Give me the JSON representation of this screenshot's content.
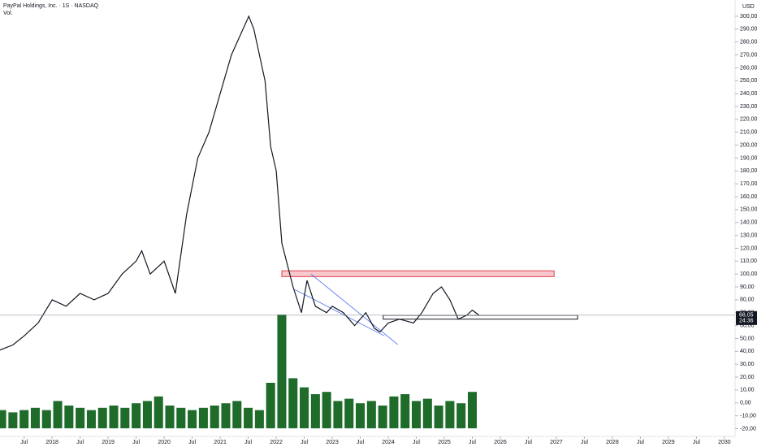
{
  "chart_data": {
    "type": "line",
    "title": "PayPal Holdings, Inc. · 1S · NASDAQ",
    "subtitle": "Vol.",
    "currency": "USD",
    "countdown": "24:36",
    "last_price": {
      "value": 68.05,
      "label": "68,05"
    },
    "xlim": [
      2017.07,
      2030.19
    ],
    "ylim": [
      -26,
      312.6
    ],
    "xticks": [
      {
        "value": 2017.5,
        "label": "Jul"
      },
      {
        "value": 2018,
        "label": "2018"
      },
      {
        "value": 2018.5,
        "label": "Jul"
      },
      {
        "value": 2019,
        "label": "2019"
      },
      {
        "value": 2019.5,
        "label": "Jul"
      },
      {
        "value": 2020,
        "label": "2020"
      },
      {
        "value": 2020.5,
        "label": "Jul"
      },
      {
        "value": 2021,
        "label": "2021"
      },
      {
        "value": 2021.5,
        "label": "Jul"
      },
      {
        "value": 2022,
        "label": "2022"
      },
      {
        "value": 2022.5,
        "label": "Jul"
      },
      {
        "value": 2023,
        "label": "2023"
      },
      {
        "value": 2023.5,
        "label": "Jul"
      },
      {
        "value": 2024,
        "label": "2024"
      },
      {
        "value": 2024.5,
        "label": "Jul"
      },
      {
        "value": 2025,
        "label": "2025"
      },
      {
        "value": 2025.5,
        "label": "Jul"
      },
      {
        "value": 2026,
        "label": "2026"
      },
      {
        "value": 2026.5,
        "label": "Jul"
      },
      {
        "value": 2027,
        "label": "2027"
      },
      {
        "value": 2027.5,
        "label": "Jul"
      },
      {
        "value": 2028,
        "label": "2028"
      },
      {
        "value": 2028.5,
        "label": "Jul"
      },
      {
        "value": 2029,
        "label": "2029"
      },
      {
        "value": 2029.5,
        "label": "Jul"
      },
      {
        "value": 2030,
        "label": "2030"
      }
    ],
    "yticks": [
      {
        "value": -20,
        "label": "-20,00"
      },
      {
        "value": -10,
        "label": "-10,00"
      },
      {
        "value": 0,
        "label": "0,00"
      },
      {
        "value": 10,
        "label": "10,00"
      },
      {
        "value": 20,
        "label": "20,00"
      },
      {
        "value": 30,
        "label": "30,00"
      },
      {
        "value": 40,
        "label": "40,00"
      },
      {
        "value": 50,
        "label": "50,00"
      },
      {
        "value": 60,
        "label": "60,00"
      },
      {
        "value": 70,
        "label": "70,00"
      },
      {
        "value": 80,
        "label": "80,00"
      },
      {
        "value": 90,
        "label": "90,00"
      },
      {
        "value": 100,
        "label": "100,00"
      },
      {
        "value": 110,
        "label": "110,00"
      },
      {
        "value": 120,
        "label": "120,00"
      },
      {
        "value": 130,
        "label": "130,00"
      },
      {
        "value": 140,
        "label": "140,00"
      },
      {
        "value": 150,
        "label": "150,00"
      },
      {
        "value": 160,
        "label": "160,00"
      },
      {
        "value": 170,
        "label": "170,00"
      },
      {
        "value": 180,
        "label": "180,00"
      },
      {
        "value": 190,
        "label": "190,00"
      },
      {
        "value": 200,
        "label": "200,00"
      },
      {
        "value": 210,
        "label": "210,00"
      },
      {
        "value": 220,
        "label": "220,00"
      },
      {
        "value": 230,
        "label": "230,00"
      },
      {
        "value": 240,
        "label": "240,00"
      },
      {
        "value": 250,
        "label": "250,00"
      },
      {
        "value": 260,
        "label": "260,00"
      },
      {
        "value": 270,
        "label": "270,00"
      },
      {
        "value": 280,
        "label": "280,00"
      },
      {
        "value": 290,
        "label": "290,00"
      },
      {
        "value": 300,
        "label": "300,00"
      }
    ],
    "grid": false,
    "series": [
      {
        "name": "PayPal Holdings, Inc.",
        "color": "#131722",
        "x": [
          2017.07,
          2017.3,
          2017.5,
          2017.75,
          2018.0,
          2018.25,
          2018.5,
          2018.75,
          2019.0,
          2019.25,
          2019.5,
          2019.6,
          2019.75,
          2020.0,
          2020.2,
          2020.4,
          2020.6,
          2020.8,
          2021.0,
          2021.2,
          2021.51,
          2021.6,
          2021.8,
          2021.9,
          2022.0,
          2022.1,
          2022.3,
          2022.45,
          2022.55,
          2022.7,
          2022.9,
          2023.0,
          2023.2,
          2023.4,
          2023.6,
          2023.75,
          2023.85,
          2024.0,
          2024.2,
          2024.45,
          2024.6,
          2024.8,
          2024.95,
          2025.1,
          2025.25,
          2025.4,
          2025.5,
          2025.62
        ],
        "values": [
          41,
          45,
          52,
          62,
          80,
          75,
          85,
          80,
          85,
          100,
          110,
          118,
          100,
          110,
          85,
          146,
          190,
          210,
          240,
          270,
          300,
          290,
          250,
          199,
          180,
          124,
          90,
          70,
          95,
          75,
          70,
          75,
          70,
          60,
          70,
          58,
          55,
          62,
          65,
          62,
          70,
          85,
          90,
          80,
          65,
          68,
          72,
          68
        ]
      },
      {
        "name": "Vol.",
        "color": "#1e6b2a",
        "kind": "volume",
        "x": [
          2017.1,
          2017.3,
          2017.5,
          2017.7,
          2017.9,
          2018.1,
          2018.3,
          2018.5,
          2018.7,
          2018.9,
          2019.1,
          2019.3,
          2019.5,
          2019.7,
          2019.9,
          2020.1,
          2020.3,
          2020.5,
          2020.7,
          2020.9,
          2021.1,
          2021.3,
          2021.5,
          2021.7,
          2021.9,
          2022.1,
          2022.3,
          2022.5,
          2022.7,
          2022.9,
          2023.1,
          2023.3,
          2023.5,
          2023.7,
          2023.9,
          2024.1,
          2024.3,
          2024.5,
          2024.7,
          2024.9,
          2025.1,
          2025.3,
          2025.5
        ],
        "values": [
          8,
          7,
          8,
          9,
          8,
          12,
          10,
          9,
          8,
          9,
          10,
          9,
          11,
          12,
          14,
          10,
          9,
          8,
          9,
          10,
          11,
          12,
          9,
          8,
          20,
          50,
          22,
          18,
          15,
          16,
          12,
          13,
          11,
          12,
          10,
          14,
          15,
          12,
          13,
          10,
          12,
          11,
          16
        ]
      }
    ],
    "zones": [
      {
        "x": [
          2022.1,
          2026.96
        ],
        "y": [
          98,
          102.5
        ],
        "color": "#f8c8cc",
        "stroke": "#e0404f"
      },
      {
        "x": [
          2023.91,
          2027.38
        ],
        "y": [
          65,
          68
        ],
        "color": "#ffffff",
        "stroke": "#131722"
      }
    ],
    "trendlines": [
      {
        "x": [
          2022.62,
          2024.17
        ],
        "y": [
          100,
          45.3
        ],
        "color": "#4a6cf0"
      },
      {
        "x": [
          2022.33,
          2023.93
        ],
        "y": [
          88,
          52
        ],
        "color": "#4a6cf0"
      }
    ]
  }
}
